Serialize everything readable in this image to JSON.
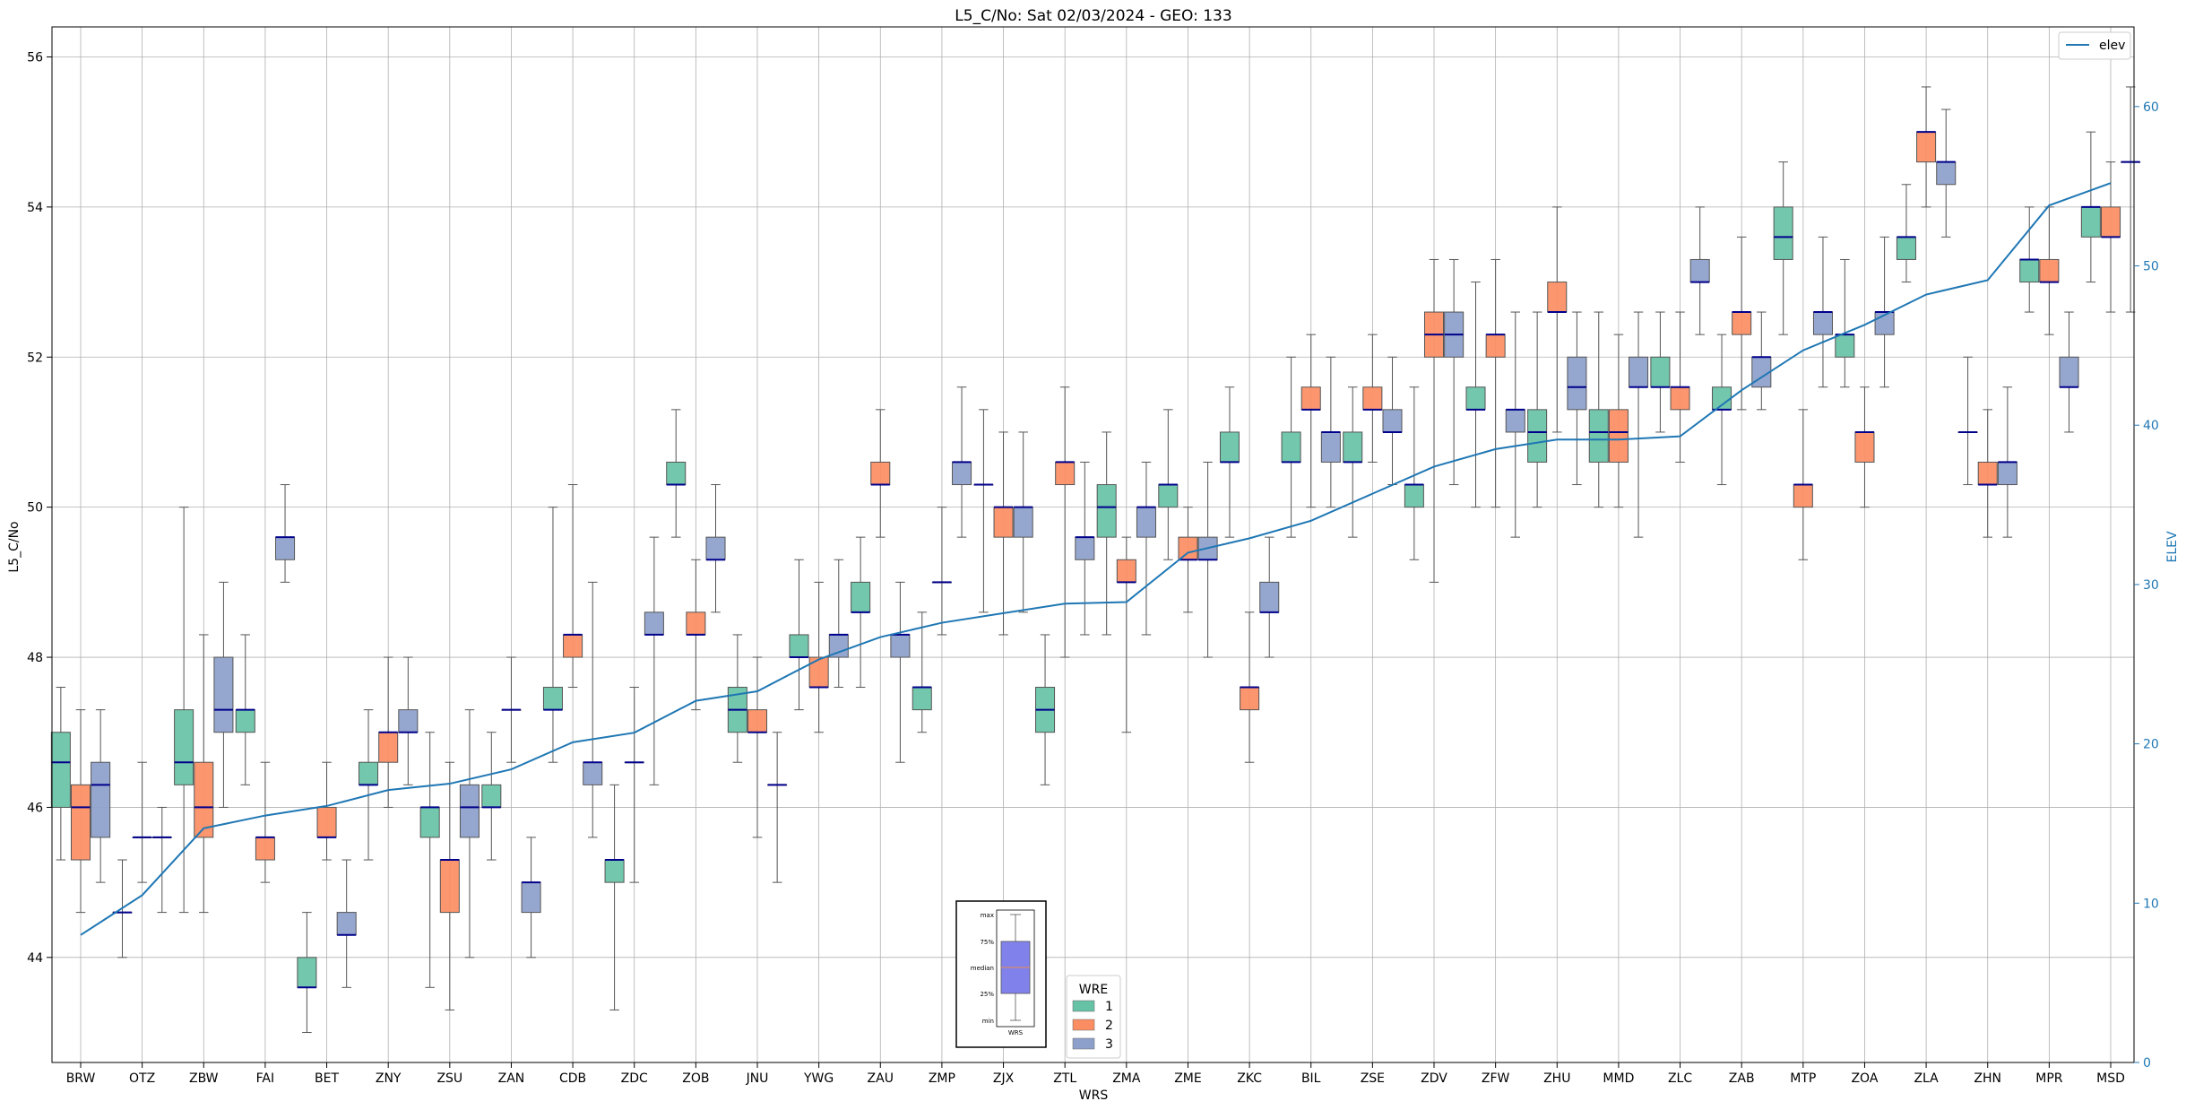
{
  "chart_data": {
    "type": "box",
    "title": "L5_C/No: Sat 02/03/2024 - GEO: 133",
    "xlabel": "WRS",
    "ylabel": "L5_C/No",
    "y2label": "ELEV",
    "ylim": [
      42.6,
      56.4
    ],
    "y2lim": [
      0,
      65
    ],
    "yticks": [
      44,
      46,
      48,
      50,
      52,
      54,
      56
    ],
    "y2ticks": [
      0,
      10,
      20,
      30,
      40,
      50,
      60
    ],
    "categories": [
      "BRW",
      "OTZ",
      "ZBW",
      "FAI",
      "BET",
      "ZNY",
      "ZSU",
      "ZAN",
      "CDB",
      "ZDC",
      "ZOB",
      "JNU",
      "YWG",
      "ZAU",
      "ZMP",
      "ZJX",
      "ZTL",
      "ZMA",
      "ZME",
      "ZKC",
      "BIL",
      "ZSE",
      "ZDV",
      "ZFW",
      "ZHU",
      "MMD",
      "ZLC",
      "ZAB",
      "MTP",
      "ZOA",
      "ZLA",
      "ZHN",
      "MPR",
      "MSD"
    ],
    "groups": [
      {
        "name": "1",
        "color": "#66c2a5"
      },
      {
        "name": "2",
        "color": "#fc8d62"
      },
      {
        "name": "3",
        "color": "#8da0cb"
      }
    ],
    "series": [
      {
        "name": "1",
        "values": [
          [
            45.3,
            46.0,
            46.6,
            47.0,
            47.6
          ],
          [
            44.0,
            44.6,
            44.6,
            44.6,
            45.3
          ],
          [
            44.6,
            46.3,
            46.6,
            47.3,
            50.0
          ],
          [
            46.3,
            47.0,
            47.3,
            47.3,
            48.3
          ],
          [
            43.0,
            43.6,
            43.6,
            44.0,
            44.6
          ],
          [
            45.3,
            46.3,
            46.3,
            46.6,
            47.3
          ],
          [
            43.6,
            45.6,
            46.0,
            46.0,
            47.0
          ],
          [
            45.3,
            46.0,
            46.0,
            46.3,
            47.0
          ],
          [
            46.6,
            47.3,
            47.3,
            47.6,
            50.0
          ],
          [
            43.3,
            45.0,
            45.3,
            45.3,
            46.3
          ],
          [
            49.6,
            50.3,
            50.3,
            50.6,
            51.3
          ],
          [
            46.6,
            47.0,
            47.3,
            47.6,
            48.3
          ],
          [
            47.3,
            48.0,
            48.0,
            48.3,
            49.3
          ],
          [
            47.6,
            48.6,
            48.6,
            49.0,
            49.6
          ],
          [
            47.0,
            47.3,
            47.6,
            47.6,
            48.6
          ],
          [
            48.6,
            50.3,
            50.3,
            50.3,
            51.3
          ],
          [
            46.3,
            47.0,
            47.3,
            47.6,
            48.3
          ],
          [
            48.3,
            49.6,
            50.0,
            50.3,
            51.0
          ],
          [
            49.3,
            50.0,
            50.3,
            50.3,
            51.3
          ],
          [
            49.6,
            50.6,
            50.6,
            51.0,
            51.6
          ],
          [
            49.6,
            50.6,
            50.6,
            51.0,
            52.0
          ],
          [
            49.6,
            50.6,
            50.6,
            51.0,
            51.6
          ],
          [
            49.3,
            50.0,
            50.3,
            50.3,
            51.6
          ],
          [
            50.0,
            51.3,
            51.3,
            51.6,
            53.0
          ],
          [
            50.0,
            50.6,
            51.0,
            51.3,
            52.6
          ],
          [
            50.0,
            50.6,
            51.0,
            51.3,
            52.6
          ],
          [
            51.0,
            51.6,
            51.6,
            52.0,
            52.6
          ],
          [
            50.3,
            51.3,
            51.3,
            51.6,
            52.3
          ],
          [
            52.3,
            53.3,
            53.6,
            54.0,
            54.6
          ],
          [
            51.6,
            52.0,
            52.3,
            52.3,
            53.3
          ],
          [
            53.0,
            53.3,
            53.6,
            53.6,
            54.3
          ],
          [
            50.3,
            51.0,
            51.0,
            51.0,
            52.0
          ],
          [
            52.6,
            53.0,
            53.3,
            53.3,
            54.0
          ],
          [
            53.0,
            53.6,
            54.0,
            54.0,
            55.0
          ]
        ]
      },
      {
        "name": "2",
        "values": [
          [
            44.6,
            45.3,
            46.0,
            46.3,
            47.3
          ],
          [
            45.0,
            45.6,
            45.6,
            45.6,
            46.6
          ],
          [
            44.6,
            45.6,
            46.0,
            46.6,
            48.3
          ],
          [
            45.0,
            45.3,
            45.6,
            45.6,
            46.6
          ],
          [
            45.3,
            45.6,
            45.6,
            46.0,
            46.6
          ],
          [
            46.0,
            46.6,
            47.0,
            47.0,
            48.0
          ],
          [
            43.3,
            44.6,
            45.3,
            45.3,
            46.6
          ],
          [
            46.6,
            47.3,
            47.3,
            47.3,
            48.0
          ],
          [
            47.6,
            48.0,
            48.3,
            48.3,
            50.3
          ],
          [
            45.0,
            46.6,
            46.6,
            46.6,
            47.6
          ],
          [
            47.3,
            48.3,
            48.3,
            48.6,
            49.3
          ],
          [
            45.6,
            47.0,
            47.0,
            47.3,
            48.0
          ],
          [
            47.0,
            47.6,
            47.6,
            48.0,
            49.0
          ],
          [
            49.6,
            50.3,
            50.3,
            50.6,
            51.3
          ],
          [
            48.3,
            49.0,
            49.0,
            49.0,
            50.0
          ],
          [
            48.3,
            49.6,
            50.0,
            50.0,
            51.0
          ],
          [
            48.0,
            50.3,
            50.6,
            50.6,
            51.6
          ],
          [
            47.0,
            49.0,
            49.0,
            49.3,
            49.6
          ],
          [
            48.6,
            49.3,
            49.3,
            49.6,
            50.0
          ],
          [
            46.6,
            47.3,
            47.6,
            47.6,
            48.6
          ],
          [
            50.0,
            51.3,
            51.3,
            51.6,
            52.3
          ],
          [
            50.6,
            51.3,
            51.3,
            51.6,
            52.3
          ],
          [
            49.0,
            52.0,
            52.3,
            52.6,
            53.3
          ],
          [
            50.0,
            52.0,
            52.3,
            52.3,
            53.3
          ],
          [
            51.0,
            52.6,
            52.6,
            53.0,
            54.0
          ],
          [
            50.0,
            50.6,
            51.0,
            51.3,
            52.3
          ],
          [
            50.6,
            51.3,
            51.6,
            51.6,
            52.6
          ],
          [
            51.3,
            52.3,
            52.6,
            52.6,
            53.6
          ],
          [
            49.3,
            50.0,
            50.3,
            50.3,
            51.3
          ],
          [
            50.0,
            50.6,
            51.0,
            51.0,
            51.6
          ],
          [
            54.0,
            54.6,
            55.0,
            55.0,
            55.6
          ],
          [
            49.6,
            50.3,
            50.3,
            50.6,
            51.3
          ],
          [
            52.3,
            53.0,
            53.0,
            53.3,
            54.0
          ],
          [
            52.6,
            53.6,
            53.6,
            54.0,
            54.6
          ]
        ]
      },
      {
        "name": "3",
        "values": [
          [
            45.0,
            45.6,
            46.3,
            46.6,
            47.3
          ],
          [
            44.6,
            45.6,
            45.6,
            45.6,
            46.0
          ],
          [
            46.0,
            47.0,
            47.3,
            48.0,
            49.0
          ],
          [
            49.0,
            49.3,
            49.6,
            49.6,
            50.3
          ],
          [
            43.6,
            44.3,
            44.3,
            44.6,
            45.3
          ],
          [
            46.3,
            47.0,
            47.0,
            47.3,
            48.0
          ],
          [
            44.0,
            45.6,
            46.0,
            46.3,
            47.3
          ],
          [
            44.0,
            44.6,
            45.0,
            45.0,
            45.6
          ],
          [
            45.6,
            46.3,
            46.6,
            46.6,
            49.0
          ],
          [
            46.3,
            48.3,
            48.3,
            48.6,
            49.6
          ],
          [
            48.6,
            49.3,
            49.3,
            49.6,
            50.3
          ],
          [
            45.0,
            46.3,
            46.3,
            46.3,
            47.0
          ],
          [
            47.6,
            48.0,
            48.3,
            48.3,
            49.3
          ],
          [
            46.6,
            48.0,
            48.3,
            48.3,
            49.0
          ],
          [
            49.6,
            50.3,
            50.6,
            50.6,
            51.6
          ],
          [
            48.6,
            49.6,
            50.0,
            50.0,
            51.0
          ],
          [
            48.3,
            49.3,
            49.6,
            49.6,
            50.6
          ],
          [
            48.3,
            49.6,
            50.0,
            50.0,
            50.6
          ],
          [
            48.0,
            49.3,
            49.3,
            49.6,
            50.6
          ],
          [
            48.0,
            48.6,
            48.6,
            49.0,
            49.6
          ],
          [
            50.0,
            50.6,
            51.0,
            51.0,
            52.0
          ],
          [
            50.3,
            51.0,
            51.0,
            51.3,
            52.0
          ],
          [
            50.3,
            52.0,
            52.3,
            52.6,
            53.3
          ],
          [
            49.6,
            51.0,
            51.3,
            51.3,
            52.6
          ],
          [
            50.3,
            51.3,
            51.6,
            52.0,
            52.6
          ],
          [
            49.6,
            51.6,
            51.6,
            52.0,
            52.6
          ],
          [
            52.3,
            53.0,
            53.0,
            53.3,
            54.0
          ],
          [
            51.3,
            51.6,
            52.0,
            52.0,
            52.6
          ],
          [
            51.6,
            52.3,
            52.6,
            52.6,
            53.6
          ],
          [
            51.6,
            52.3,
            52.6,
            52.6,
            53.6
          ],
          [
            53.6,
            54.3,
            54.6,
            54.6,
            55.3
          ],
          [
            49.6,
            50.3,
            50.6,
            50.6,
            51.6
          ],
          [
            51.0,
            51.6,
            51.6,
            52.0,
            52.6
          ],
          [
            52.6,
            54.6,
            54.6,
            54.6,
            55.6
          ]
        ]
      }
    ],
    "elev_series": {
      "name": "elev",
      "values": [
        8.0,
        10.5,
        14.7,
        15.5,
        16.1,
        17.1,
        17.5,
        18.4,
        20.1,
        20.7,
        22.7,
        23.3,
        25.3,
        26.7,
        27.6,
        28.2,
        28.8,
        28.9,
        32.0,
        32.9,
        34.0,
        35.7,
        37.4,
        38.5,
        39.1,
        39.1,
        39.3,
        42.2,
        44.7,
        46.3,
        48.2,
        49.1,
        53.8,
        55.2
      ]
    },
    "legend": {
      "elev_label": "elev",
      "group_title": "WRE",
      "location_elev": "top-right",
      "location_groups": "lower-center"
    },
    "inset_labels": [
      "max",
      "75%",
      "median",
      "25%",
      "min"
    ],
    "inset_xlabel": "WRS",
    "grid": true
  }
}
